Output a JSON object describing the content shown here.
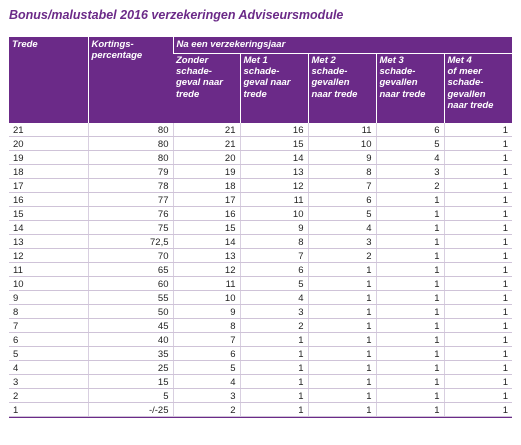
{
  "title": "Bonus/malustabel 2016 verzekeringen Adviseursmodule",
  "header": {
    "trede": "Trede",
    "korting": "Kortings-\npercentage",
    "group": "Na een verzekeringsjaar",
    "cols": [
      "Zonder\nschade-\ngeval naar\ntrede",
      "Met 1\nschade-\ngeval naar\ntrede",
      "Met 2\nschade-\ngevallen\nnaar trede",
      "Met 3\nschade-\ngevallen\nnaar trede",
      "Met 4\nof meer\nschade-\ngevallen\nnaar trede"
    ]
  },
  "rows": [
    [
      "21",
      "80",
      "21",
      "16",
      "11",
      "6",
      "1"
    ],
    [
      "20",
      "80",
      "21",
      "15",
      "10",
      "5",
      "1"
    ],
    [
      "19",
      "80",
      "20",
      "14",
      "9",
      "4",
      "1"
    ],
    [
      "18",
      "79",
      "19",
      "13",
      "8",
      "3",
      "1"
    ],
    [
      "17",
      "78",
      "18",
      "12",
      "7",
      "2",
      "1"
    ],
    [
      "16",
      "77",
      "17",
      "11",
      "6",
      "1",
      "1"
    ],
    [
      "15",
      "76",
      "16",
      "10",
      "5",
      "1",
      "1"
    ],
    [
      "14",
      "75",
      "15",
      "9",
      "4",
      "1",
      "1"
    ],
    [
      "13",
      "72,5",
      "14",
      "8",
      "3",
      "1",
      "1"
    ],
    [
      "12",
      "70",
      "13",
      "7",
      "2",
      "1",
      "1"
    ],
    [
      "11",
      "65",
      "12",
      "6",
      "1",
      "1",
      "1"
    ],
    [
      "10",
      "60",
      "11",
      "5",
      "1",
      "1",
      "1"
    ],
    [
      "9",
      "55",
      "10",
      "4",
      "1",
      "1",
      "1"
    ],
    [
      "8",
      "50",
      "9",
      "3",
      "1",
      "1",
      "1"
    ],
    [
      "7",
      "45",
      "8",
      "2",
      "1",
      "1",
      "1"
    ],
    [
      "6",
      "40",
      "7",
      "1",
      "1",
      "1",
      "1"
    ],
    [
      "5",
      "35",
      "6",
      "1",
      "1",
      "1",
      "1"
    ],
    [
      "4",
      "25",
      "5",
      "1",
      "1",
      "1",
      "1"
    ],
    [
      "3",
      "15",
      "4",
      "1",
      "1",
      "1",
      "1"
    ],
    [
      "2",
      "5",
      "3",
      "1",
      "1",
      "1",
      "1"
    ],
    [
      "1",
      "-/-25",
      "2",
      "1",
      "1",
      "1",
      "1"
    ]
  ],
  "colors": {
    "accent": "#6b2a88",
    "header_text": "#ffffff",
    "rule": "#cfc3d8"
  }
}
